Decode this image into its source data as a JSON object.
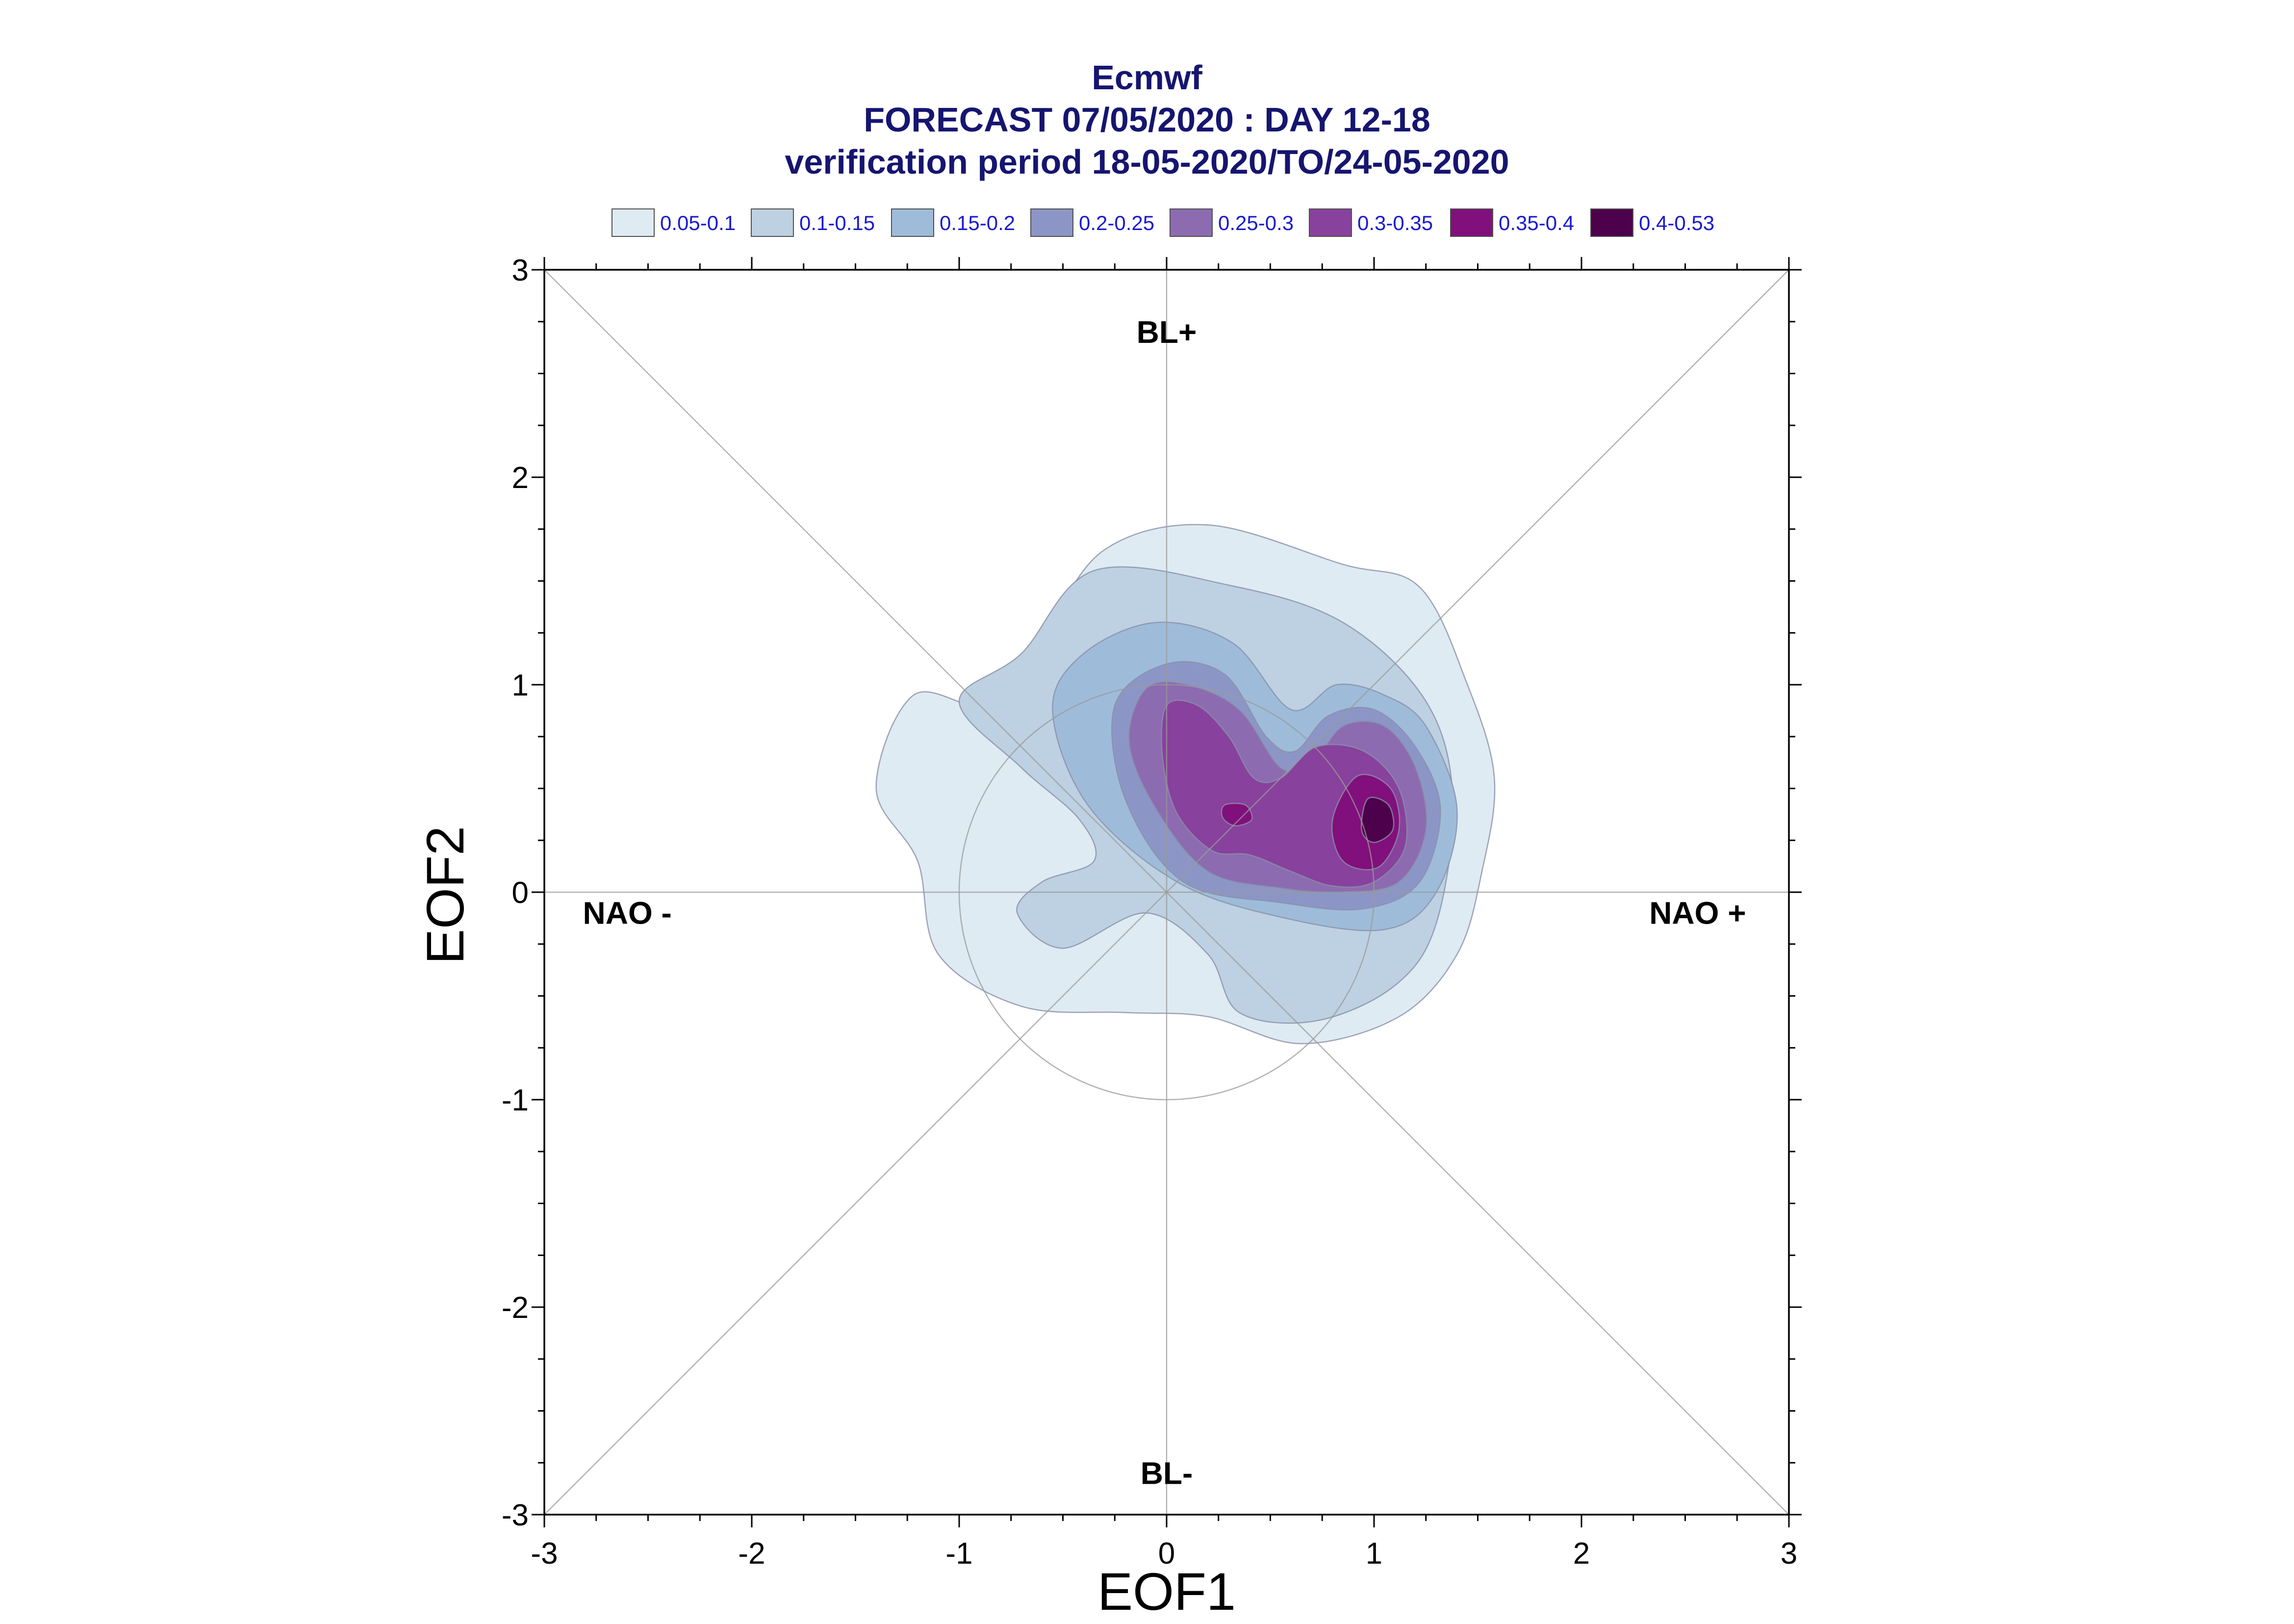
{
  "chart_data": {
    "type": "contour",
    "title_lines": [
      "Ecmwf",
      "FORECAST 07/05/2020 : DAY 12-18",
      "verification period 18-05-2020/TO/24-05-2020"
    ],
    "xlabel": "EOF1",
    "ylabel": "EOF2",
    "xlim": [
      -3,
      3
    ],
    "ylim": [
      -3,
      3
    ],
    "xticks": [
      "-3",
      "-2",
      "-1",
      "0",
      "1",
      "2",
      "3"
    ],
    "yticks": [
      "-3",
      "-2",
      "-1",
      "0",
      "1",
      "2",
      "3"
    ],
    "legend_position": "top",
    "levels": [
      {
        "label": "0.05-0.1",
        "color": "#deebf3"
      },
      {
        "label": "0.1-0.15",
        "color": "#bdd1e2"
      },
      {
        "label": "0.15-0.2",
        "color": "#9ebcda"
      },
      {
        "label": "0.2-0.25",
        "color": "#8c96c6"
      },
      {
        "label": "0.25-0.3",
        "color": "#8c6bb1"
      },
      {
        "label": "0.3-0.35",
        "color": "#88419d"
      },
      {
        "label": "0.35-0.4",
        "color": "#810f7c"
      },
      {
        "label": "0.4-0.53",
        "color": "#4d004b"
      }
    ],
    "regime_labels": [
      {
        "text": "BL+",
        "x": 0.0,
        "y": 2.7
      },
      {
        "text": "BL-",
        "x": 0.0,
        "y": -2.8
      },
      {
        "text": "NAO -",
        "x": -2.6,
        "y": -0.1
      },
      {
        "text": "NAO +",
        "x": 2.56,
        "y": -0.1
      }
    ],
    "reference_circle": {
      "center": [
        0,
        0
      ],
      "radius": 1
    },
    "contour_polygons": [
      {
        "level": 0,
        "points": [
          [
            -0.85,
            0.9
          ],
          [
            -0.6,
            1.23
          ],
          [
            -0.3,
            1.65
          ],
          [
            0.2,
            1.77
          ],
          [
            0.85,
            1.58
          ],
          [
            1.22,
            1.47
          ],
          [
            1.45,
            1.0
          ],
          [
            1.58,
            0.55
          ],
          [
            1.52,
            0.1
          ],
          [
            1.4,
            -0.3
          ],
          [
            1.12,
            -0.6
          ],
          [
            0.65,
            -0.73
          ],
          [
            0.2,
            -0.6
          ],
          [
            -0.2,
            -0.58
          ],
          [
            -0.7,
            -0.55
          ],
          [
            -1.1,
            -0.3
          ],
          [
            -1.2,
            0.15
          ],
          [
            -1.4,
            0.5
          ],
          [
            -1.22,
            0.95
          ]
        ]
      },
      {
        "level": 1,
        "points": [
          [
            -0.7,
            1.15
          ],
          [
            -0.35,
            1.55
          ],
          [
            0.3,
            1.48
          ],
          [
            0.85,
            1.3
          ],
          [
            1.25,
            0.92
          ],
          [
            1.38,
            0.45
          ],
          [
            1.3,
            -0.15
          ],
          [
            1.1,
            -0.45
          ],
          [
            0.72,
            -0.62
          ],
          [
            0.35,
            -0.58
          ],
          [
            0.2,
            -0.3
          ],
          [
            -0.1,
            -0.1
          ],
          [
            -0.5,
            -0.27
          ],
          [
            -0.72,
            -0.1
          ],
          [
            -0.6,
            0.05
          ],
          [
            -0.35,
            0.15
          ],
          [
            -0.42,
            0.35
          ],
          [
            -0.7,
            0.6
          ],
          [
            -1.0,
            0.92
          ]
        ]
      },
      {
        "level": 2,
        "points": [
          [
            -0.4,
            1.15
          ],
          [
            -0.05,
            1.3
          ],
          [
            0.32,
            1.2
          ],
          [
            0.6,
            0.88
          ],
          [
            0.82,
            1.0
          ],
          [
            1.05,
            0.95
          ],
          [
            1.25,
            0.8
          ],
          [
            1.4,
            0.4
          ],
          [
            1.3,
            0.0
          ],
          [
            1.05,
            -0.18
          ],
          [
            0.55,
            -0.12
          ],
          [
            0.05,
            0.05
          ],
          [
            -0.38,
            0.42
          ],
          [
            -0.55,
            0.88
          ]
        ]
      },
      {
        "level": 3,
        "points": [
          [
            -0.25,
            0.9
          ],
          [
            0.0,
            1.1
          ],
          [
            0.28,
            1.05
          ],
          [
            0.48,
            0.75
          ],
          [
            0.62,
            0.68
          ],
          [
            0.78,
            0.85
          ],
          [
            1.0,
            0.88
          ],
          [
            1.2,
            0.7
          ],
          [
            1.32,
            0.4
          ],
          [
            1.22,
            0.05
          ],
          [
            0.95,
            -0.08
          ],
          [
            0.55,
            -0.05
          ],
          [
            0.08,
            0.05
          ],
          [
            -0.2,
            0.45
          ]
        ]
      },
      {
        "level": 4,
        "points": [
          [
            -0.1,
            0.98
          ],
          [
            0.1,
            1.0
          ],
          [
            0.35,
            0.88
          ],
          [
            0.55,
            0.6
          ],
          [
            0.7,
            0.62
          ],
          [
            0.85,
            0.8
          ],
          [
            1.05,
            0.8
          ],
          [
            1.2,
            0.6
          ],
          [
            1.25,
            0.3
          ],
          [
            1.12,
            0.05
          ],
          [
            0.85,
            0.0
          ],
          [
            0.55,
            0.02
          ],
          [
            0.2,
            0.1
          ],
          [
            -0.05,
            0.4
          ],
          [
            -0.18,
            0.72
          ]
        ]
      },
      {
        "level": 5,
        "points": [
          [
            0.0,
            0.9
          ],
          [
            0.15,
            0.9
          ],
          [
            0.3,
            0.75
          ],
          [
            0.42,
            0.55
          ],
          [
            0.55,
            0.55
          ],
          [
            0.72,
            0.7
          ],
          [
            0.95,
            0.68
          ],
          [
            1.12,
            0.5
          ],
          [
            1.15,
            0.22
          ],
          [
            1.0,
            0.05
          ],
          [
            0.8,
            0.03
          ],
          [
            0.6,
            0.1
          ],
          [
            0.4,
            0.18
          ],
          [
            0.22,
            0.2
          ],
          [
            0.05,
            0.38
          ],
          [
            -0.02,
            0.65
          ]
        ]
      },
      {
        "level": 6,
        "points": [
          [
            0.92,
            0.56
          ],
          [
            1.08,
            0.5
          ],
          [
            1.12,
            0.3
          ],
          [
            1.02,
            0.12
          ],
          [
            0.85,
            0.15
          ],
          [
            0.8,
            0.35
          ]
        ]
      },
      {
        "level": 6,
        "points": [
          [
            0.28,
            0.42
          ],
          [
            0.38,
            0.42
          ],
          [
            0.41,
            0.35
          ],
          [
            0.33,
            0.32
          ],
          [
            0.27,
            0.36
          ]
        ]
      },
      {
        "level": 7,
        "points": [
          [
            0.97,
            0.45
          ],
          [
            1.07,
            0.42
          ],
          [
            1.09,
            0.3
          ],
          [
            1.0,
            0.24
          ],
          [
            0.94,
            0.3
          ]
        ]
      }
    ]
  }
}
